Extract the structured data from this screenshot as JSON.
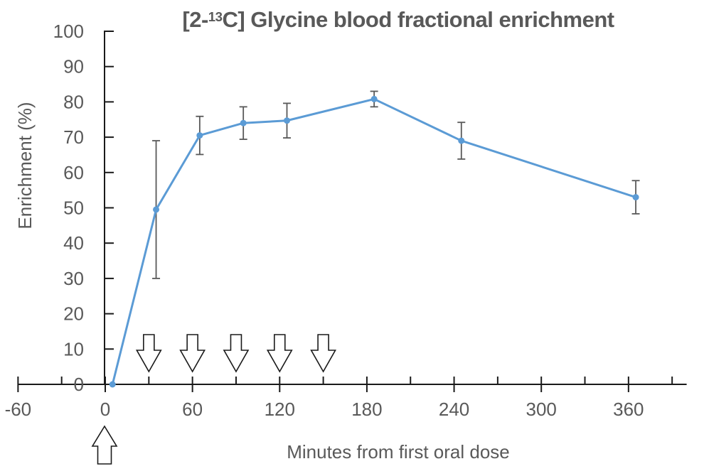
{
  "chart_data": {
    "type": "line",
    "title": {
      "prefix": "[2-",
      "superscript": "13",
      "suffix": "C] Glycine blood fractional enrichment"
    },
    "xlabel": "Minutes from first oral dose",
    "ylabel": "Enrichment (%)",
    "xlim": [
      -60,
      400
    ],
    "ylim": [
      0,
      100
    ],
    "grid": false,
    "legend": "none",
    "x_major_ticks": [
      -60,
      0,
      60,
      120,
      180,
      240,
      300,
      360
    ],
    "x_minor_ticks": [
      -30,
      30,
      90,
      150,
      210,
      270,
      330,
      390
    ],
    "y_ticks": [
      0,
      10,
      20,
      30,
      40,
      50,
      60,
      70,
      80,
      90,
      100
    ],
    "series": [
      {
        "name": "[2-13C] glycine blood fractional enrichment (%)",
        "x": [
          5,
          35,
          65,
          95,
          125,
          185,
          245,
          365
        ],
        "y": [
          0,
          49.5,
          70.5,
          74,
          74.7,
          80.8,
          69,
          53
        ],
        "y_err": [
          0,
          19.5,
          5.4,
          4.6,
          4.9,
          2.2,
          5.2,
          4.7
        ],
        "color": "#5B9BD5",
        "marker": "circle"
      }
    ],
    "annotations": {
      "oral_dose_arrows_down_x": [
        30,
        60,
        90,
        120,
        150
      ],
      "first_oral_dose_arrow_up_x": 0
    },
    "style": {
      "line_color": "#5B9BD5",
      "error_bar_color": "#595959",
      "text_color": "#595959",
      "axis_color": "#1a1a1a",
      "arrow_fill": "#ffffff",
      "arrow_outline": "#1a1a1a",
      "background": "#ffffff"
    }
  }
}
